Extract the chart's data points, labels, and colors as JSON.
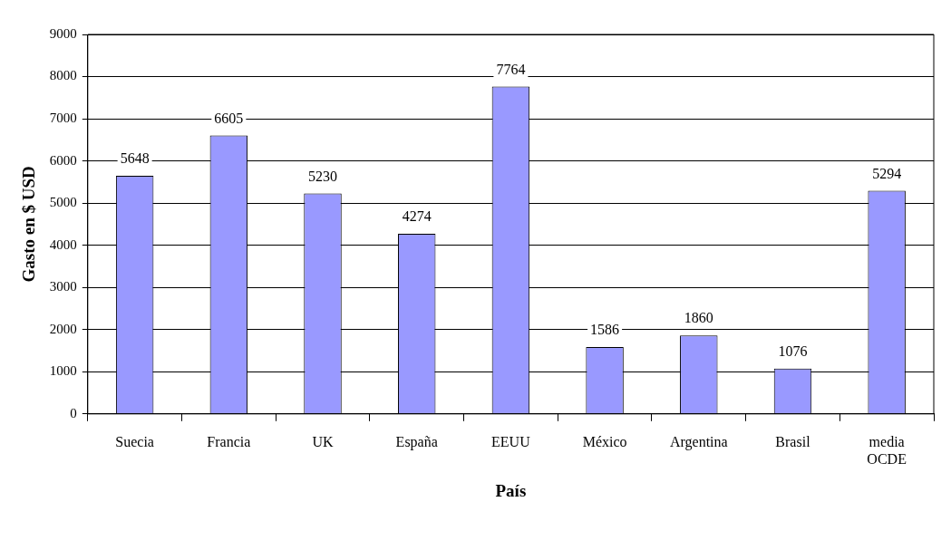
{
  "chart_data": {
    "type": "bar",
    "xlabel": "País",
    "ylabel": "Gasto en $ USD",
    "categories": [
      "Suecia",
      "Francia",
      "UK",
      "España",
      "EEUU",
      "México",
      "Argentina",
      "Brasil",
      "media OCDE"
    ],
    "values": [
      5648,
      6605,
      5230,
      4274,
      7764,
      1586,
      1860,
      1076,
      5294
    ],
    "color": "#9999ff",
    "ylim": [
      0,
      9000
    ],
    "yticks": [
      0,
      1000,
      2000,
      3000,
      4000,
      5000,
      6000,
      7000,
      8000,
      9000
    ],
    "grid": "y",
    "legend": false,
    "data_labels": true
  }
}
